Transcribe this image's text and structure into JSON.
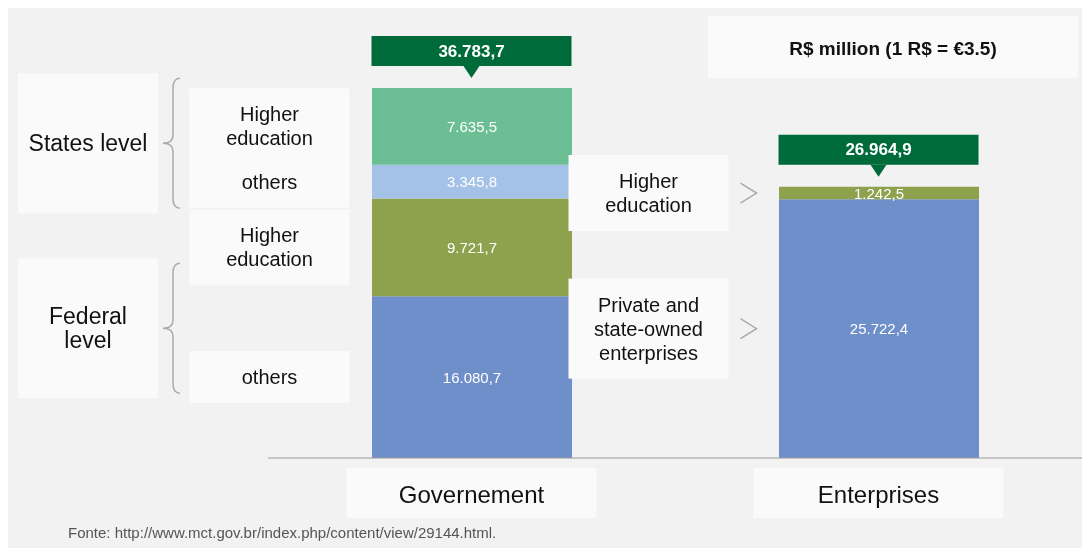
{
  "chart_data": {
    "type": "bar",
    "stacked": true,
    "subtitle": "R$ million (1 R$ = €3.5)",
    "categories": [
      "Governement",
      "Enterprises"
    ],
    "series": [
      {
        "color": "#6f8fca",
        "values": [
          16080.7,
          25722.4
        ],
        "value_labels": [
          "16.080,7",
          "25.722,4"
        ]
      },
      {
        "color": "#8ea24e",
        "values": [
          9721.7,
          1242.5
        ],
        "value_labels": [
          "9.721,7",
          "1.242,5"
        ]
      },
      {
        "color": "#a4c2e8",
        "values": [
          3345.8,
          null
        ],
        "value_labels": [
          "3.345,8",
          null
        ]
      },
      {
        "color": "#6cbf94",
        "values": [
          7635.5,
          null
        ],
        "value_labels": [
          "7.635,5",
          null
        ]
      }
    ],
    "totals": [
      "36.783,7",
      "26.964,9"
    ],
    "annotations": [
      "others",
      "Higher education",
      "others",
      "Higher education",
      "Private and state-owned enterprises",
      "Higher education",
      "States level",
      "Federal level",
      "Fonte: http://www.mct.gov.br/index.php/content/view/29144.html."
    ]
  }
}
